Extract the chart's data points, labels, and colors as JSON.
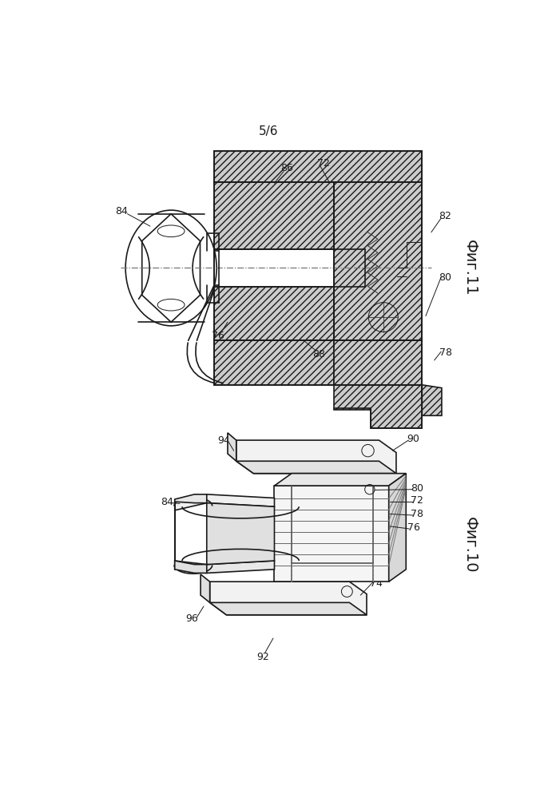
{
  "bg_color": "#ffffff",
  "lc": "#1a1a1a",
  "page_label": "5/6",
  "fig11_label": "Фиг.11",
  "fig10_label": "Фиг.10",
  "label_fs": 9,
  "fig_label_fs": 14,
  "page_fs": 11
}
